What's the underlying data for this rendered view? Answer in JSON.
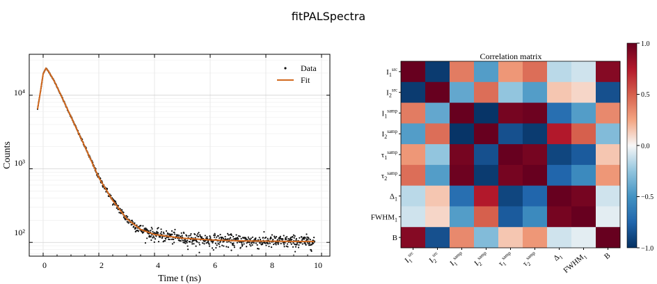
{
  "app": {
    "title": "fitPALSpectra"
  },
  "colors": {
    "data": "#111111",
    "fit": "#d2691e",
    "grid": "#e2e2e2"
  },
  "chart_data": [
    {
      "type": "scatter",
      "xlabel": "Time t (ns)",
      "ylabel": "Counts",
      "xlim": [
        -0.5,
        10.3
      ],
      "ylim": [
        65,
        36000
      ],
      "yscale": "log",
      "grid": true,
      "legend_position": "top-right",
      "x_ticks": [
        "0",
        "2",
        "4",
        "6",
        "8",
        "10"
      ],
      "y_ticks": [
        "10²",
        "10³",
        "10⁴"
      ],
      "series": [
        {
          "name": "Data",
          "kind": "points",
          "color": "#111111",
          "x_range": [
            -0.2,
            9.75
          ],
          "approx_points": 900
        },
        {
          "name": "Fit",
          "kind": "line",
          "color": "#d2691e",
          "x": [
            -0.2,
            -0.1,
            0.0,
            0.1,
            0.2,
            0.4,
            0.6,
            0.8,
            1.0,
            1.2,
            1.5,
            1.8,
            2.0,
            2.5,
            3.0,
            3.5,
            4.0,
            5.0,
            6.0,
            7.0,
            8.0,
            9.0,
            9.75
          ],
          "y": [
            6500,
            11000,
            19500,
            23200,
            21000,
            15500,
            10800,
            7400,
            5100,
            3500,
            2000,
            1120,
            760,
            370,
            210,
            150,
            128,
            114,
            108,
            105,
            104,
            103,
            103
          ]
        }
      ]
    },
    {
      "type": "heatmap",
      "title": "Correlation matrix",
      "labels": [
        "I1src",
        "I2src",
        "I1samp",
        "I2samp",
        "τ1samp",
        "τ2samp",
        "Δ1",
        "FWHM1",
        "B"
      ],
      "label_base": [
        "I",
        "I",
        "I",
        "I",
        "τ",
        "τ",
        "Δ",
        "FWHM",
        "B"
      ],
      "label_sub": [
        "1",
        "2",
        "1",
        "2",
        "1",
        "2",
        "1",
        "1",
        ""
      ],
      "label_sup": [
        "src",
        "src",
        "samp",
        "samp",
        "samp",
        "samp",
        "",
        "",
        ""
      ],
      "colorbar": {
        "min": -1.0,
        "max": 1.0,
        "ticks": [
          "1.0",
          "0.5",
          "0.0",
          "−0.5",
          "−1.0"
        ],
        "cmap": "RdBu_r"
      },
      "matrix": [
        [
          1.0,
          -0.95,
          0.4,
          -0.45,
          0.3,
          0.45,
          -0.15,
          -0.1,
          0.9
        ],
        [
          -0.95,
          1.0,
          -0.4,
          0.45,
          -0.25,
          -0.45,
          0.15,
          0.1,
          -0.85
        ],
        [
          0.4,
          -0.4,
          1.0,
          -0.98,
          0.95,
          0.98,
          -0.7,
          -0.45,
          0.35
        ],
        [
          -0.45,
          0.45,
          -0.98,
          1.0,
          -0.85,
          -0.95,
          0.75,
          0.5,
          -0.3
        ],
        [
          0.3,
          -0.25,
          0.95,
          -0.85,
          1.0,
          0.95,
          -0.9,
          -0.8,
          0.15
        ],
        [
          0.45,
          -0.45,
          0.98,
          -0.95,
          0.95,
          1.0,
          -0.75,
          -0.55,
          0.3
        ],
        [
          -0.15,
          0.15,
          -0.7,
          0.75,
          -0.9,
          -0.75,
          1.0,
          0.95,
          -0.1
        ],
        [
          -0.1,
          0.1,
          -0.45,
          0.5,
          -0.8,
          -0.55,
          0.95,
          1.0,
          -0.05
        ],
        [
          0.9,
          -0.85,
          0.35,
          -0.3,
          0.15,
          0.3,
          -0.1,
          -0.05,
          1.0
        ]
      ]
    }
  ]
}
